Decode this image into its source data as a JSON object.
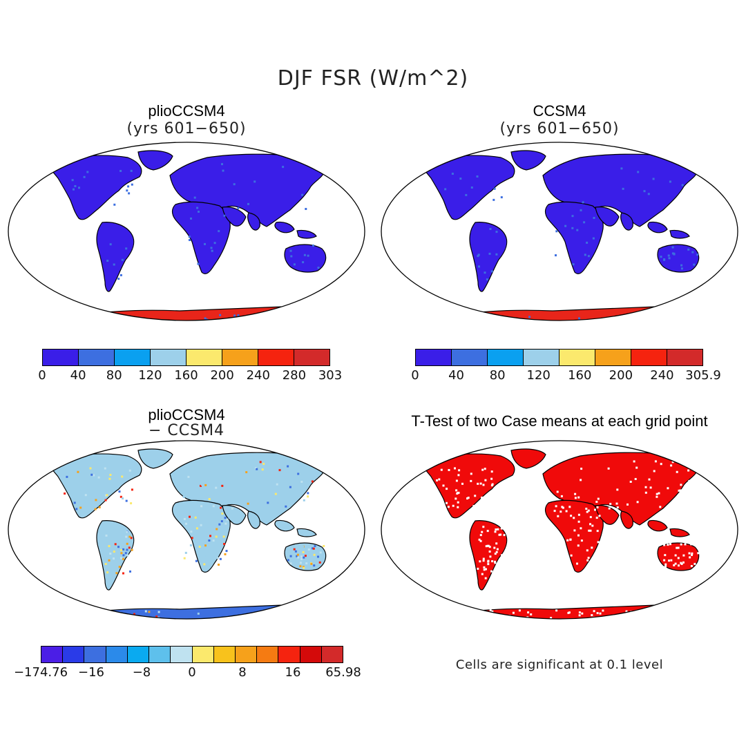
{
  "title": "DJF FSR (W/m^2)",
  "panels": [
    {
      "id": "plio",
      "title": "plioCCSM4",
      "subtitle": "(yrs 601−650)",
      "fill": "#3a1ee8",
      "fill2": "#3d6fe0",
      "ant": "#e8251a",
      "colorbar": {
        "colors": [
          "#3a1ee8",
          "#3d6fe0",
          "#0aa0f0",
          "#9dd0ea",
          "#fbe96d",
          "#f6a11b",
          "#f5230f",
          "#d32a2a"
        ],
        "labels": [
          "0",
          "40",
          "80",
          "120",
          "160",
          "200",
          "240",
          "280",
          "303"
        ]
      }
    },
    {
      "id": "ccsm",
      "title": "CCSM4",
      "subtitle": "(yrs 601−650)",
      "fill": "#3a1ee8",
      "fill2": "#3d6fe0",
      "ant": "#e8251a",
      "colorbar": {
        "colors": [
          "#3a1ee8",
          "#3d6fe0",
          "#0aa0f0",
          "#9dd0ea",
          "#fbe96d",
          "#f6a11b",
          "#f5230f",
          "#d32a2a"
        ],
        "labels": [
          "0",
          "40",
          "80",
          "120",
          "160",
          "200",
          "240",
          "305.9"
        ]
      }
    },
    {
      "id": "diff",
      "title": "plioCCSM4",
      "subtitle": "− CCSM4",
      "fill": "#9dd0ea",
      "fill2": "#fbe96d",
      "ant": "#3d6fe0",
      "colorbar": {
        "colors": [
          "#4b1ee6",
          "#2a3be8",
          "#3d6fe0",
          "#2b8aea",
          "#0aaaf0",
          "#5ec0ec",
          "#bfe2f0",
          "#fbe96d",
          "#f8c21c",
          "#f6a11b",
          "#f57b12",
          "#f5230f",
          "#d40a0a",
          "#d32a2a"
        ],
        "labels": [
          "−174.76",
          "−16",
          "−8",
          "0",
          "8",
          "16",
          "65.98"
        ]
      }
    },
    {
      "id": "ttest",
      "title": "T-Test of two Case means at each grid point",
      "subtitle": "",
      "fill": "#f00a0a",
      "fill2": "#f00a0a",
      "ant": "#f00a0a"
    }
  ],
  "footnote": "Cells are significant at 0.1 level"
}
